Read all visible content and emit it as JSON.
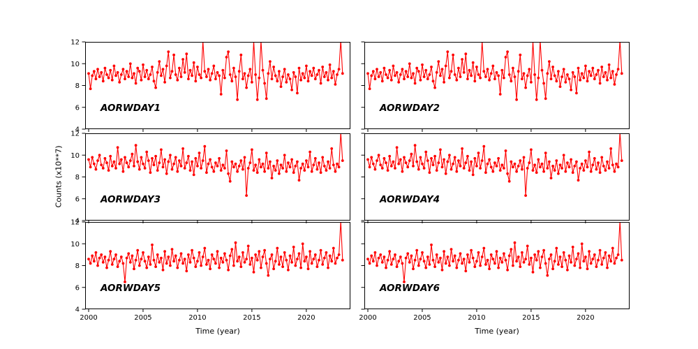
{
  "figure": {
    "background": "#ffffff"
  },
  "chart_data": {
    "type": "line",
    "title": "",
    "xlabel": "Time (year)",
    "ylabel": "Counts (x10**7)",
    "xlim": [
      1999.68,
      2024.05
    ],
    "ylim": [
      4,
      12
    ],
    "xticks": [
      2000,
      2005,
      2010,
      2015,
      2020
    ],
    "yticks": [
      4,
      6,
      8,
      10,
      12
    ],
    "grid": false,
    "legend": "none",
    "marker": "circle",
    "line_color": "#ff0000",
    "marker_color": "#ff0000",
    "axis_color": "#000000",
    "x_start": 2000.0,
    "x_step": 0.16667,
    "panels": [
      {
        "label": "AORWDAY1",
        "values_key": "sA",
        "row": 0,
        "col": 0,
        "show_ytick_labels": true,
        "show_xtick_labels": false
      },
      {
        "label": "AORWDAY2",
        "values_key": "sA",
        "row": 0,
        "col": 1,
        "show_ytick_labels": false,
        "show_xtick_labels": false
      },
      {
        "label": "AORWDAY3",
        "values_key": "sB",
        "row": 1,
        "col": 0,
        "show_ytick_labels": true,
        "show_xtick_labels": false
      },
      {
        "label": "AORWDAY4",
        "values_key": "sB",
        "row": 1,
        "col": 1,
        "show_ytick_labels": false,
        "show_xtick_labels": false
      },
      {
        "label": "AORWDAY5",
        "values_key": "sC",
        "row": 2,
        "col": 0,
        "show_ytick_labels": true,
        "show_xtick_labels": true
      },
      {
        "label": "AORWDAY6",
        "values_key": "sC",
        "row": 2,
        "col": 1,
        "show_ytick_labels": false,
        "show_xtick_labels": true
      }
    ],
    "values": {
      "sA": [
        9.1,
        7.7,
        8.9,
        9.3,
        8.6,
        9.5,
        8.8,
        9.2,
        8.4,
        9.6,
        9.0,
        8.7,
        9.4,
        8.5,
        9.8,
        8.9,
        9.2,
        8.3,
        9.0,
        9.5,
        8.6,
        9.3,
        8.8,
        10.0,
        8.7,
        9.1,
        8.2,
        9.6,
        9.3,
        8.5,
        9.9,
        8.8,
        9.4,
        8.6,
        9.0,
        9.7,
        8.4,
        7.8,
        9.2,
        10.2,
        8.9,
        9.5,
        8.3,
        9.8,
        11.1,
        8.7,
        9.3,
        10.8,
        9.0,
        8.5,
        9.6,
        8.8,
        10.4,
        9.2,
        10.9,
        8.6,
        9.4,
        8.9,
        10.1,
        8.4,
        9.7,
        9.0,
        8.7,
        12.1,
        9.3,
        8.8,
        9.5,
        8.5,
        9.1,
        9.8,
        8.6,
        9.2,
        8.9,
        7.2,
        9.4,
        8.7,
        10.6,
        11.1,
        9.0,
        8.4,
        9.6,
        8.8,
        6.7,
        9.3,
        10.8,
        8.6,
        9.1,
        7.8,
        8.9,
        9.5,
        8.3,
        12.1,
        9.0,
        6.7,
        8.7,
        12.1,
        9.4,
        8.2,
        6.8,
        9.1,
        10.2,
        8.6,
        9.7,
        8.9,
        8.4,
        9.3,
        7.9,
        8.8,
        9.5,
        8.3,
        9.0,
        8.6,
        7.6,
        9.2,
        8.8,
        7.3,
        9.6,
        8.5,
        9.1,
        8.7,
        9.8,
        8.4,
        9.3,
        8.9,
        9.6,
        8.6,
        9.0,
        9.4,
        8.2,
        9.7,
        8.8,
        9.2,
        8.5,
        9.9,
        8.7,
        9.3,
        8.1,
        9.0,
        9.5,
        12.15,
        9.1
      ],
      "sB": [
        9.6,
        8.9,
        9.8,
        9.2,
        8.7,
        9.5,
        10.0,
        9.1,
        8.8,
        9.7,
        9.3,
        8.6,
        9.9,
        9.0,
        9.4,
        8.8,
        10.7,
        9.2,
        9.6,
        8.5,
        9.8,
        9.3,
        8.9,
        9.5,
        10.1,
        9.0,
        10.9,
        9.4,
        8.7,
        9.8,
        9.2,
        8.8,
        10.3,
        9.5,
        8.4,
        9.7,
        9.1,
        9.9,
        8.6,
        9.3,
        10.5,
        8.9,
        9.6,
        8.3,
        9.4,
        10.0,
        8.7,
        9.2,
        9.8,
        8.5,
        9.5,
        9.0,
        10.6,
        8.8,
        9.3,
        9.9,
        8.6,
        9.4,
        8.2,
        9.7,
        9.0,
        10.2,
        8.8,
        9.5,
        10.8,
        8.4,
        9.2,
        9.6,
        8.9,
        8.5,
        9.3,
        9.0,
        9.7,
        8.6,
        9.1,
        8.8,
        10.4,
        8.3,
        7.6,
        9.4,
        8.9,
        9.2,
        8.5,
        9.0,
        9.5,
        8.7,
        9.8,
        6.3,
        8.8,
        9.3,
        10.5,
        8.6,
        9.1,
        8.4,
        9.6,
        8.9,
        9.2,
        8.5,
        10.2,
        8.8,
        9.4,
        7.9,
        9.0,
        8.6,
        9.5,
        8.3,
        9.1,
        8.8,
        10.0,
        8.5,
        9.3,
        8.9,
        9.6,
        8.4,
        9.0,
        9.4,
        7.7,
        8.8,
        9.2,
        8.6,
        9.5,
        8.9,
        10.3,
        8.5,
        9.1,
        9.7,
        8.7,
        9.3,
        8.4,
        9.8,
        9.0,
        8.6,
        9.4,
        8.8,
        10.6,
        9.1,
        8.5,
        9.2,
        8.9,
        12.1,
        9.5
      ],
      "sC": [
        8.6,
        8.2,
        8.9,
        8.4,
        9.2,
        8.0,
        8.7,
        9.0,
        8.3,
        8.8,
        7.8,
        8.5,
        9.3,
        8.1,
        8.6,
        9.0,
        7.9,
        8.4,
        8.8,
        8.2,
        6.5,
        8.7,
        9.1,
        8.3,
        8.9,
        7.7,
        8.5,
        9.4,
        8.0,
        8.6,
        9.2,
        8.4,
        7.8,
        8.8,
        8.1,
        9.9,
        8.5,
        7.9,
        9.0,
        8.3,
        8.7,
        7.6,
        9.3,
        8.2,
        8.8,
        8.0,
        9.5,
        8.4,
        8.9,
        7.8,
        8.5,
        9.1,
        8.2,
        8.6,
        7.5,
        9.0,
        8.3,
        9.4,
        8.7,
        7.9,
        8.4,
        9.2,
        8.0,
        8.8,
        9.6,
        8.1,
        8.5,
        7.7,
        9.0,
        8.6,
        8.2,
        9.3,
        7.8,
        8.7,
        8.3,
        9.1,
        8.5,
        7.6,
        8.9,
        9.5,
        8.0,
        10.1,
        8.4,
        8.8,
        7.9,
        9.2,
        8.3,
        8.6,
        9.8,
        8.1,
        8.7,
        7.4,
        9.0,
        8.5,
        9.3,
        7.8,
        8.8,
        9.4,
        8.2,
        7.1,
        8.6,
        9.0,
        7.7,
        8.4,
        9.6,
        8.1,
        8.8,
        7.9,
        9.2,
        8.5,
        7.6,
        8.9,
        8.3,
        9.7,
        8.0,
        8.6,
        9.1,
        7.8,
        10.0,
        8.4,
        8.8,
        7.7,
        9.3,
        8.2,
        8.6,
        9.0,
        7.9,
        8.5,
        9.4,
        8.1,
        8.7,
        9.2,
        7.8,
        8.9,
        8.4,
        9.6,
        8.2,
        8.7,
        9.0,
        12.1,
        8.5
      ]
    }
  }
}
